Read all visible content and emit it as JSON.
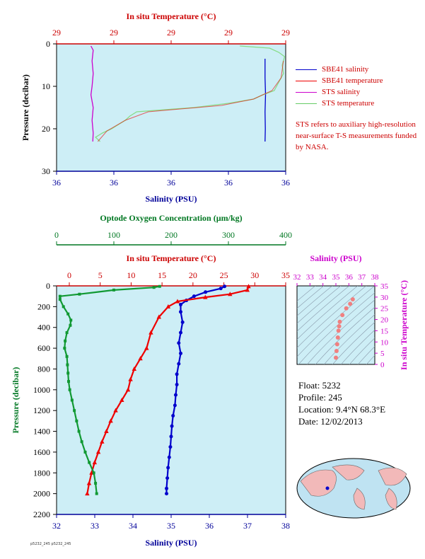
{
  "colors": {
    "plot_bg": "#cdeef6",
    "red": "#ee0000",
    "blue": "#0000cc",
    "green": "#119933",
    "magenta": "#cc00cc",
    "light_green": "#88dd88",
    "axis_red": "#cc0000",
    "axis_blue": "#000099",
    "axis_green": "#007722"
  },
  "legend": {
    "items": [
      {
        "label": "SBE41 salinity",
        "color": "#0000cc"
      },
      {
        "label": "SBE41 temperature",
        "color": "#ee0000"
      },
      {
        "label": "STS salinity",
        "color": "#cc00cc"
      },
      {
        "label": "STS temperature",
        "color": "#66cc66"
      }
    ],
    "note": "STS refers to auxiliary high-resolution near-surface T-S measurements funded by NASA."
  },
  "info": {
    "float": "Float:  5232",
    "profile": "Profile:  245",
    "location": "Location:  9.4°N  68.3°E",
    "date": "Date:  12/02/2013"
  },
  "stamp": "p5232_245 p5232_245",
  "chart_data": [
    {
      "type": "line",
      "title": "",
      "top_label": "In situ Temperature (°C)",
      "top_ticks": [
        "29",
        "29",
        "29",
        "29",
        "29"
      ],
      "xlabel": "Salinity (PSU)",
      "x_ticks": [
        "36",
        "36",
        "36",
        "36",
        "36"
      ],
      "ylabel": "Pressure (decibar)",
      "y_ticks": [
        0,
        10,
        20,
        30
      ],
      "ylim": [
        0,
        30
      ],
      "series": [
        {
          "name": "SBE41 salinity",
          "axis": "salinity_frac",
          "points": [
            [
              0.91,
              3.5
            ],
            [
              0.91,
              8
            ],
            [
              0.912,
              12
            ],
            [
              0.91,
              16
            ],
            [
              0.911,
              20
            ],
            [
              0.91,
              23
            ]
          ]
        },
        {
          "name": "STS salinity",
          "axis": "salinity_frac",
          "points": [
            [
              0.15,
              0.5
            ],
            [
              0.16,
              1.5
            ],
            [
              0.155,
              4
            ],
            [
              0.16,
              7
            ],
            [
              0.155,
              10
            ],
            [
              0.15,
              12
            ],
            [
              0.16,
              15
            ],
            [
              0.155,
              18
            ],
            [
              0.16,
              21
            ],
            [
              0.158,
              23
            ]
          ]
        },
        {
          "name": "STS temperature",
          "axis": "temp_frac",
          "points": [
            [
              0.8,
              0.5
            ],
            [
              0.93,
              1
            ],
            [
              0.97,
              2
            ],
            [
              0.995,
              3
            ],
            [
              0.985,
              5
            ],
            [
              0.99,
              7
            ],
            [
              0.97,
              9
            ],
            [
              0.95,
              11
            ],
            [
              0.9,
              12
            ],
            [
              0.86,
              13
            ],
            [
              0.75,
              14
            ],
            [
              0.6,
              15
            ],
            [
              0.35,
              16
            ],
            [
              0.32,
              17
            ],
            [
              0.3,
              18
            ],
            [
              0.27,
              19
            ],
            [
              0.24,
              20
            ],
            [
              0.2,
              21
            ],
            [
              0.17,
              22
            ],
            [
              0.19,
              23
            ]
          ]
        },
        {
          "name": "SBE41 temperature",
          "axis": "temp_frac",
          "points": [
            [
              0.99,
              4
            ],
            [
              0.98,
              8
            ],
            [
              0.94,
              11
            ],
            [
              0.86,
              13
            ],
            [
              0.72,
              14.5
            ],
            [
              0.4,
              16
            ],
            [
              0.3,
              18
            ],
            [
              0.22,
              20.5
            ],
            [
              0.18,
              23
            ]
          ]
        }
      ]
    },
    {
      "type": "line",
      "title": "",
      "oxygen_label": "Optode Oxygen Concentration (µm/kg)",
      "oxygen_ticks": [
        0,
        100,
        200,
        300,
        400
      ],
      "temp_label": "In situ Temperature (°C)",
      "temp_ticks": [
        0,
        5,
        10,
        15,
        20,
        25,
        30,
        35
      ],
      "xlabel": "Salinity (PSU)",
      "salinity_ticks": [
        32,
        33,
        34,
        35,
        36,
        37,
        38
      ],
      "ylabel": "Pressure (decibar)",
      "y_ticks": [
        0,
        200,
        400,
        600,
        800,
        1000,
        1200,
        1400,
        1600,
        1800,
        2000,
        2200
      ],
      "ylim": [
        0,
        2200
      ],
      "series": [
        {
          "name": "Salinity",
          "axis": "salinity",
          "marker": "circle",
          "points": [
            [
              36.4,
              5
            ],
            [
              36.3,
              25
            ],
            [
              35.9,
              60
            ],
            [
              35.6,
              100
            ],
            [
              35.4,
              140
            ],
            [
              35.25,
              180
            ],
            [
              35.25,
              250
            ],
            [
              35.3,
              350
            ],
            [
              35.25,
              450
            ],
            [
              35.2,
              550
            ],
            [
              35.25,
              650
            ],
            [
              35.2,
              750
            ],
            [
              35.15,
              850
            ],
            [
              35.15,
              950
            ],
            [
              35.12,
              1050
            ],
            [
              35.1,
              1150
            ],
            [
              35.05,
              1250
            ],
            [
              35.02,
              1350
            ],
            [
              35.0,
              1450
            ],
            [
              34.98,
              1550
            ],
            [
              34.95,
              1650
            ],
            [
              34.92,
              1750
            ],
            [
              34.9,
              1850
            ],
            [
              34.88,
              1950
            ],
            [
              34.88,
              2000
            ]
          ]
        },
        {
          "name": "Temperature",
          "axis": "temp",
          "marker": "triangle",
          "points": [
            [
              29.0,
              5
            ],
            [
              28.8,
              40
            ],
            [
              26.0,
              80
            ],
            [
              22.0,
              110
            ],
            [
              17.5,
              150
            ],
            [
              16.0,
              200
            ],
            [
              14.5,
              300
            ],
            [
              13.2,
              450
            ],
            [
              12.5,
              600
            ],
            [
              11.5,
              700
            ],
            [
              10.5,
              800
            ],
            [
              9.9,
              900
            ],
            [
              9.5,
              1000
            ],
            [
              8.5,
              1100
            ],
            [
              7.5,
              1200
            ],
            [
              6.7,
              1300
            ],
            [
              6.0,
              1400
            ],
            [
              5.3,
              1500
            ],
            [
              4.7,
              1600
            ],
            [
              4.1,
              1700
            ],
            [
              3.6,
              1800
            ],
            [
              3.2,
              1900
            ],
            [
              2.9,
              2000
            ]
          ]
        },
        {
          "name": "Oxygen",
          "axis": "oxygen",
          "marker": "square",
          "points": [
            [
              180,
              5
            ],
            [
              170,
              15
            ],
            [
              100,
              40
            ],
            [
              40,
              80
            ],
            [
              6,
              100
            ],
            [
              6,
              130
            ],
            [
              12,
              200
            ],
            [
              20,
              270
            ],
            [
              25,
              330
            ],
            [
              24,
              380
            ],
            [
              18,
              450
            ],
            [
              15,
              530
            ],
            [
              14,
              600
            ],
            [
              18,
              680
            ],
            [
              19,
              760
            ],
            [
              20,
              840
            ],
            [
              21,
              920
            ],
            [
              23,
              1000
            ],
            [
              27,
              1100
            ],
            [
              31,
              1200
            ],
            [
              35,
              1300
            ],
            [
              39,
              1400
            ],
            [
              44,
              1500
            ],
            [
              50,
              1600
            ],
            [
              57,
              1700
            ],
            [
              65,
              1800
            ],
            [
              68,
              1900
            ],
            [
              70,
              2000
            ]
          ]
        }
      ]
    },
    {
      "type": "scatter",
      "title": "",
      "xlabel": "Salinity (PSU)",
      "x_ticks": [
        32,
        33,
        34,
        35,
        36,
        37,
        38
      ],
      "xlim": [
        32,
        38
      ],
      "ylabel": "In situ Temperature (°C)",
      "y_ticks": [
        0,
        5,
        10,
        15,
        20,
        25,
        30,
        35
      ],
      "ylim": [
        0,
        35
      ],
      "series": [
        {
          "name": "T-S",
          "points": [
            [
              35.0,
              3
            ],
            [
              35.05,
              6
            ],
            [
              35.1,
              9
            ],
            [
              35.15,
              12
            ],
            [
              35.2,
              15
            ],
            [
              35.25,
              17
            ],
            [
              35.3,
              19
            ],
            [
              35.5,
              22
            ],
            [
              35.8,
              25
            ],
            [
              36.1,
              27
            ],
            [
              36.3,
              29
            ]
          ]
        }
      ]
    }
  ]
}
